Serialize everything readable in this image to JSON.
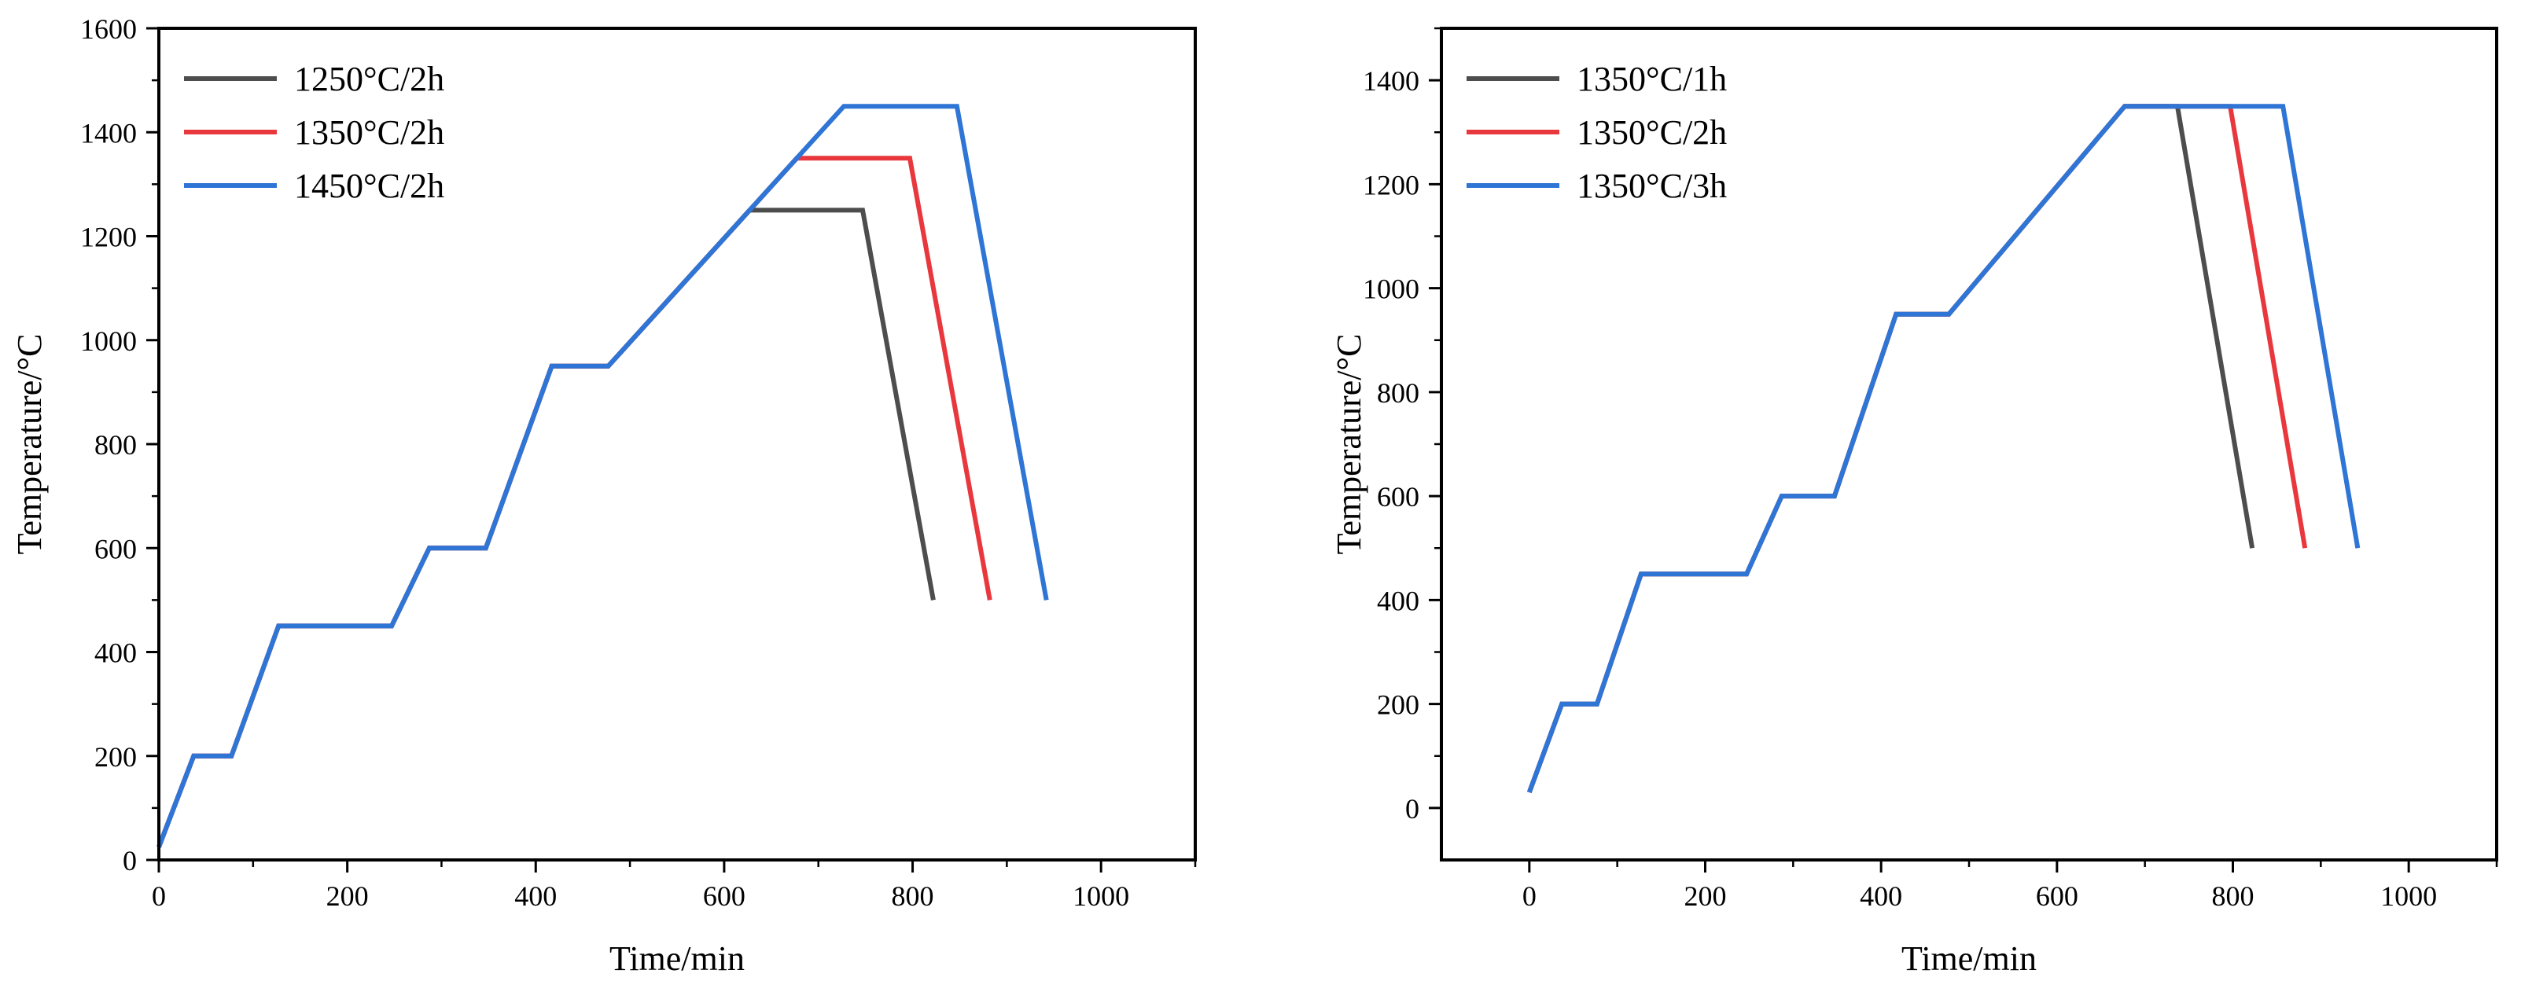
{
  "chart_data": [
    {
      "type": "line",
      "title": "",
      "xlabel": "Time/min",
      "ylabel": "Temperature/°C",
      "xlim": [
        0,
        1100
      ],
      "ylim": [
        0,
        1600
      ],
      "xticks": [
        0,
        200,
        400,
        600,
        800,
        1000
      ],
      "yticks": [
        0,
        200,
        400,
        600,
        800,
        1000,
        1200,
        1400,
        1600
      ],
      "legend_position": "top-left",
      "series": [
        {
          "name": "1250°C/2h",
          "color": "#4d4d4d",
          "x": [
            0,
            37,
            77,
            127,
            247,
            287,
            347,
            417,
            477,
            627,
            747,
            822
          ],
          "y": [
            25,
            200,
            200,
            450,
            450,
            600,
            600,
            950,
            950,
            1250,
            1250,
            500
          ]
        },
        {
          "name": "1350°C/2h",
          "color": "#e8383d",
          "x": [
            0,
            37,
            77,
            127,
            247,
            287,
            347,
            417,
            477,
            677,
            797,
            882
          ],
          "y": [
            25,
            200,
            200,
            450,
            450,
            600,
            600,
            950,
            950,
            1350,
            1350,
            500
          ]
        },
        {
          "name": "1450°C/2h",
          "color": "#2e75d6",
          "x": [
            0,
            37,
            77,
            127,
            247,
            287,
            347,
            417,
            477,
            727,
            847,
            942
          ],
          "y": [
            25,
            200,
            200,
            450,
            450,
            600,
            600,
            950,
            950,
            1450,
            1450,
            500
          ]
        }
      ]
    },
    {
      "type": "line",
      "title": "",
      "xlabel": "Time/min",
      "ylabel": "Temperature/°C",
      "xlim": [
        -100,
        1100
      ],
      "ylim": [
        -100,
        1500
      ],
      "xticks": [
        0,
        200,
        400,
        600,
        800,
        1000
      ],
      "yticks": [
        0,
        200,
        400,
        600,
        800,
        1000,
        1200,
        1400
      ],
      "legend_position": "top-left",
      "series": [
        {
          "name": "1350°C/1h",
          "color": "#4d4d4d",
          "x": [
            0,
            37,
            77,
            127,
            247,
            287,
            347,
            417,
            477,
            677,
            737,
            822
          ],
          "y": [
            30,
            200,
            200,
            450,
            450,
            600,
            600,
            950,
            950,
            1350,
            1350,
            500
          ]
        },
        {
          "name": "1350°C/2h",
          "color": "#e8383d",
          "x": [
            0,
            37,
            77,
            127,
            247,
            287,
            347,
            417,
            477,
            677,
            797,
            882
          ],
          "y": [
            30,
            200,
            200,
            450,
            450,
            600,
            600,
            950,
            950,
            1350,
            1350,
            500
          ]
        },
        {
          "name": "1350°C/3h",
          "color": "#2e75d6",
          "x": [
            0,
            37,
            77,
            127,
            247,
            287,
            347,
            417,
            477,
            677,
            857,
            942
          ],
          "y": [
            30,
            200,
            200,
            450,
            450,
            600,
            600,
            950,
            950,
            1350,
            1350,
            500
          ]
        }
      ]
    }
  ]
}
